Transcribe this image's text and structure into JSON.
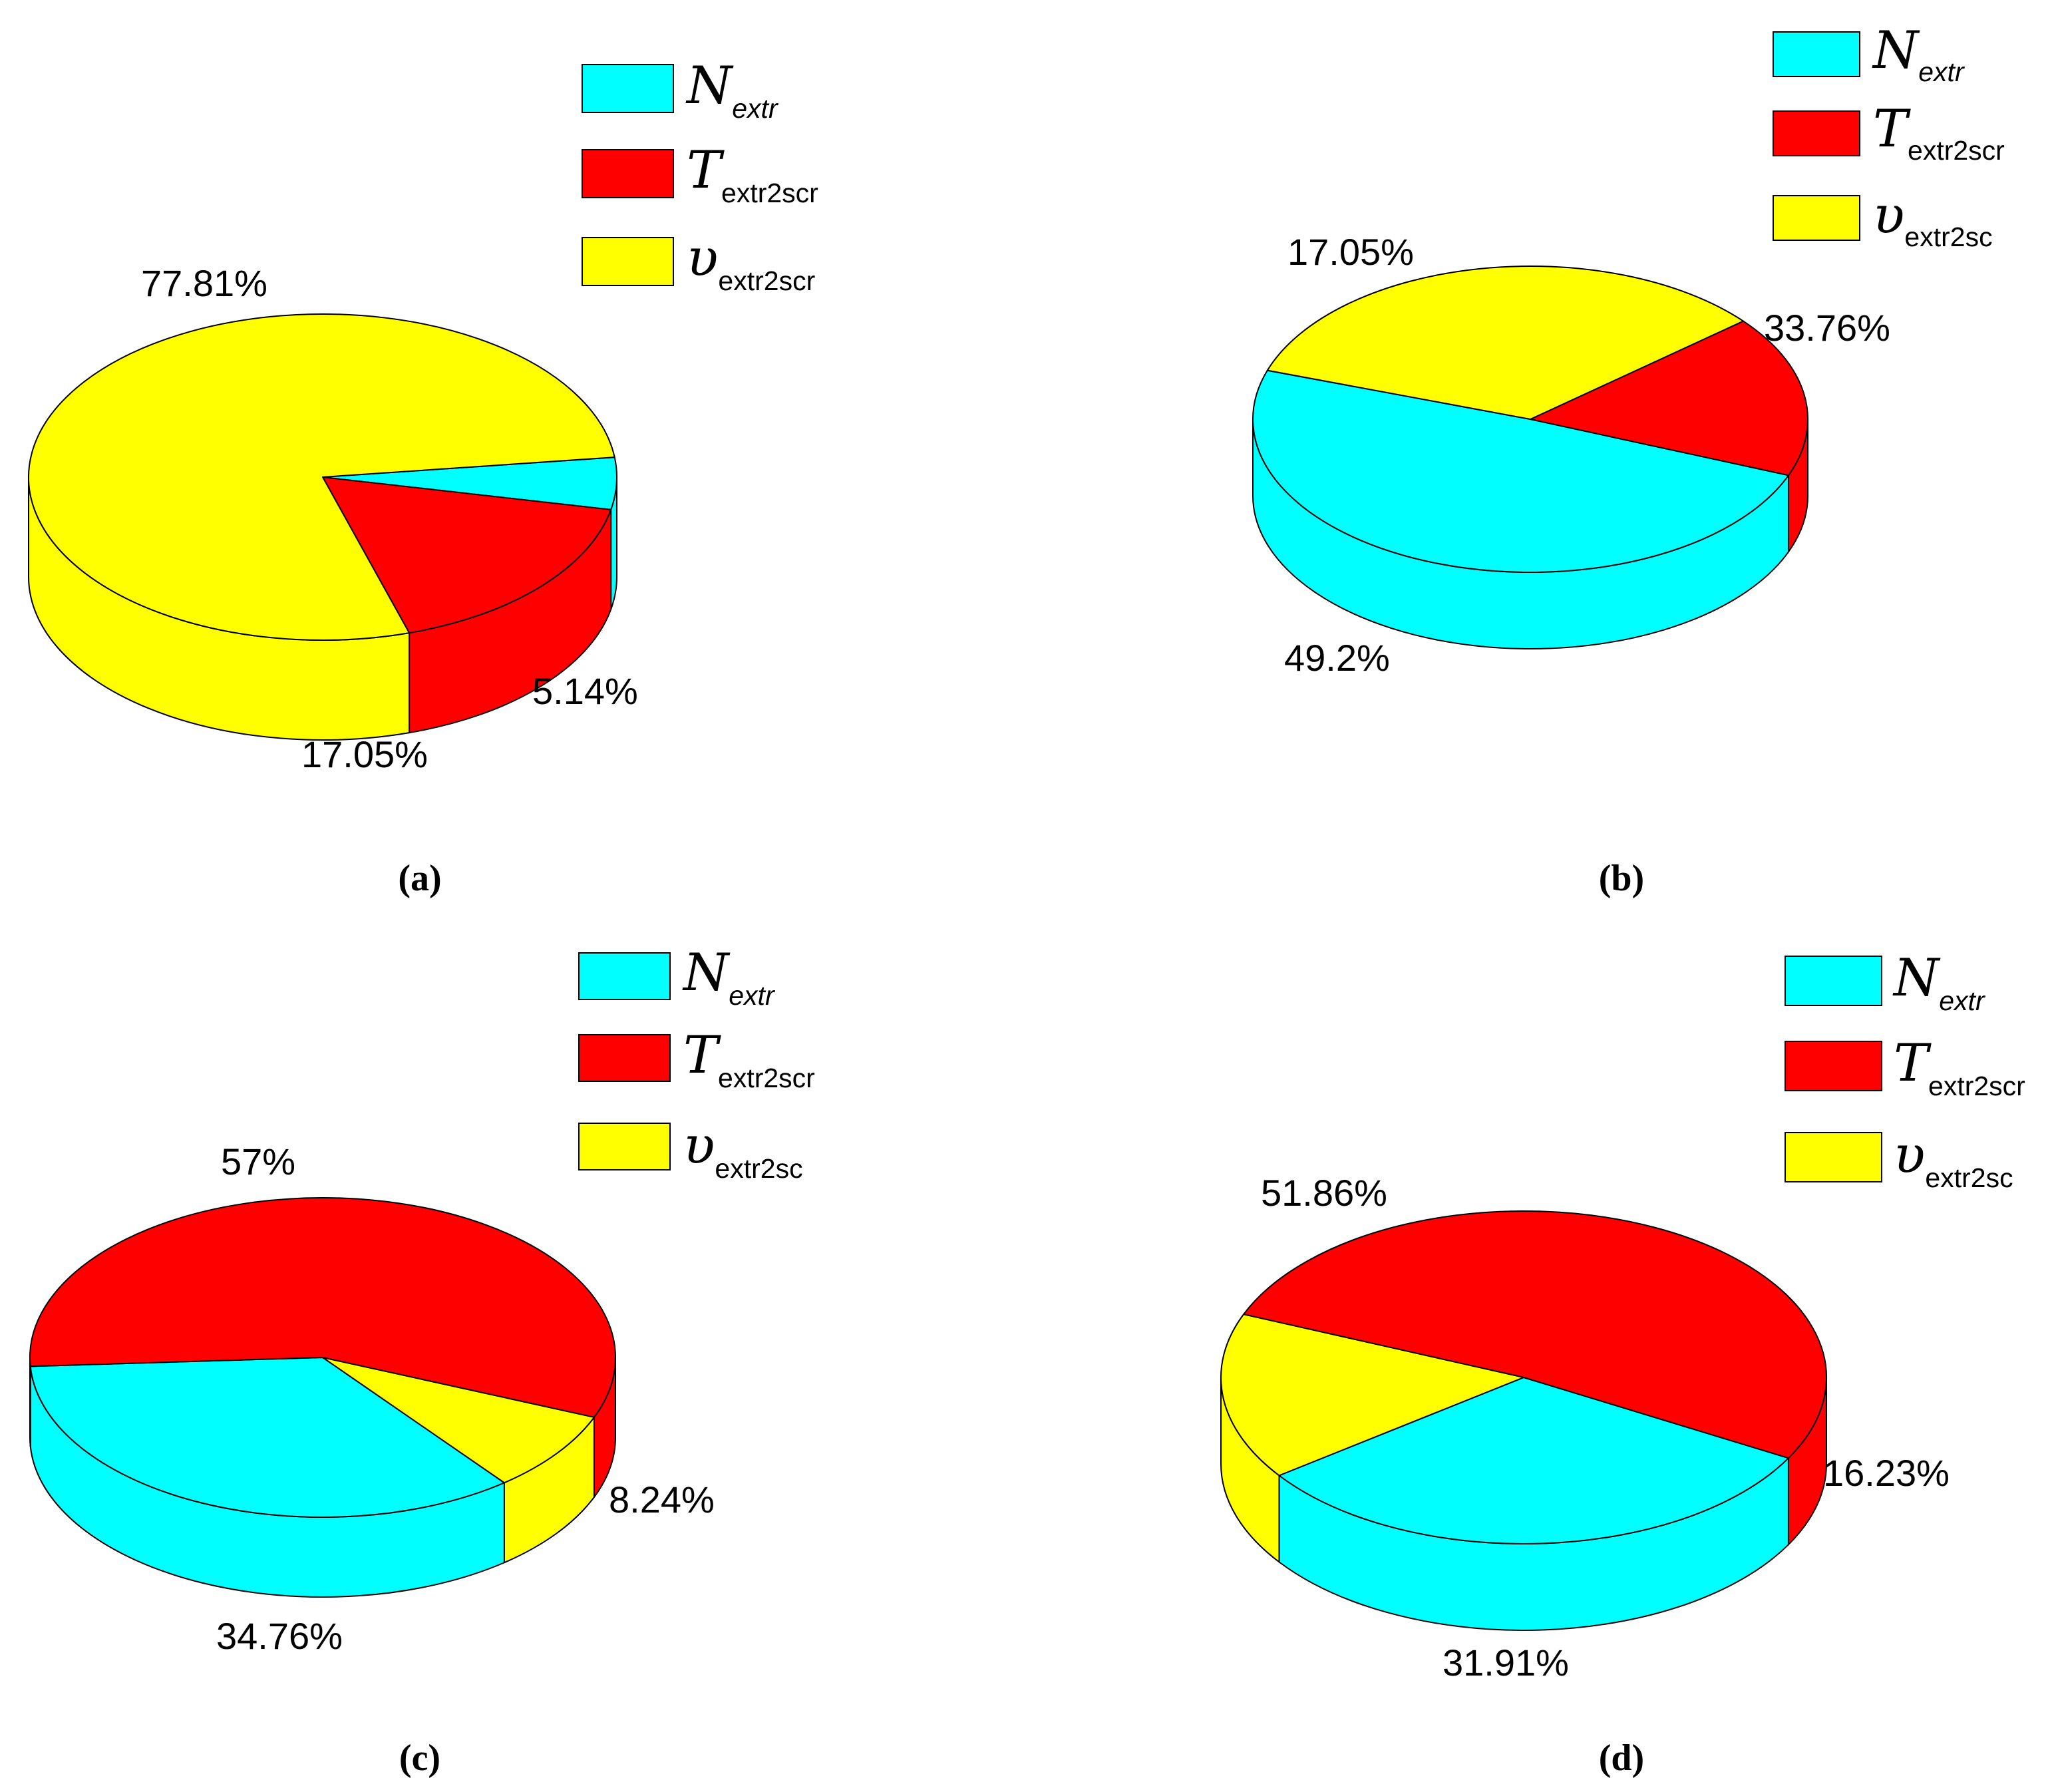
{
  "colors": {
    "cyan": "#00FFFF",
    "red": "#FF0000",
    "yellow": "#FFFF00",
    "edge": "#000000"
  },
  "chart_data": [
    {
      "type": "pie",
      "style": "3d",
      "caption": "(a)",
      "legend_placement": "top-right",
      "slices": [
        {
          "symbol": "N",
          "subscript": "extr",
          "subscript_italic": true,
          "color": "#00FFFF",
          "value": 5.14,
          "label": "5.14%"
        },
        {
          "symbol": "T",
          "subscript": "extr2scr",
          "subscript_italic": false,
          "color": "#FF0000",
          "value": 17.05,
          "label": "17.05%"
        },
        {
          "symbol": "υ",
          "subscript": "extr2scr",
          "subscript_italic": false,
          "color": "#FFFF00",
          "value": 77.81,
          "label": "77.81%"
        }
      ]
    },
    {
      "type": "pie",
      "style": "3d",
      "caption": "(b)",
      "legend_placement": "top-right",
      "slices": [
        {
          "symbol": "N",
          "subscript": "extr",
          "subscript_italic": true,
          "color": "#00FFFF",
          "value": 49.2,
          "label": "49.2%"
        },
        {
          "symbol": "T",
          "subscript": "extr2scr",
          "subscript_italic": false,
          "color": "#FF0000",
          "value": 17.05,
          "label": "17.05%"
        },
        {
          "symbol": "υ",
          "subscript": "extr2sc",
          "subscript_italic": false,
          "color": "#FFFF00",
          "value": 33.76,
          "label": "33.76%"
        }
      ]
    },
    {
      "type": "pie",
      "style": "3d",
      "caption": "(c)",
      "legend_placement": "top-right",
      "slices": [
        {
          "symbol": "N",
          "subscript": "extr",
          "subscript_italic": true,
          "color": "#00FFFF",
          "value": 34.76,
          "label": "34.76%"
        },
        {
          "symbol": "T",
          "subscript": "extr2scr",
          "subscript_italic": false,
          "color": "#FF0000",
          "value": 57,
          "label": "57%"
        },
        {
          "symbol": "υ",
          "subscript": "extr2sc",
          "subscript_italic": false,
          "color": "#FFFF00",
          "value": 8.24,
          "label": "8.24%"
        }
      ]
    },
    {
      "type": "pie",
      "style": "3d",
      "caption": "(d)",
      "legend_placement": "top-right",
      "slices": [
        {
          "symbol": "N",
          "subscript": "extr",
          "subscript_italic": true,
          "color": "#00FFFF",
          "value": 31.91,
          "label": "31.91%"
        },
        {
          "symbol": "T",
          "subscript": "extr2scr",
          "subscript_italic": false,
          "color": "#FF0000",
          "value": 51.86,
          "label": "51.86%"
        },
        {
          "symbol": "υ",
          "subscript": "extr2sc",
          "subscript_italic": false,
          "color": "#FFFF00",
          "value": 16.23,
          "label": "16.23%"
        }
      ]
    }
  ]
}
